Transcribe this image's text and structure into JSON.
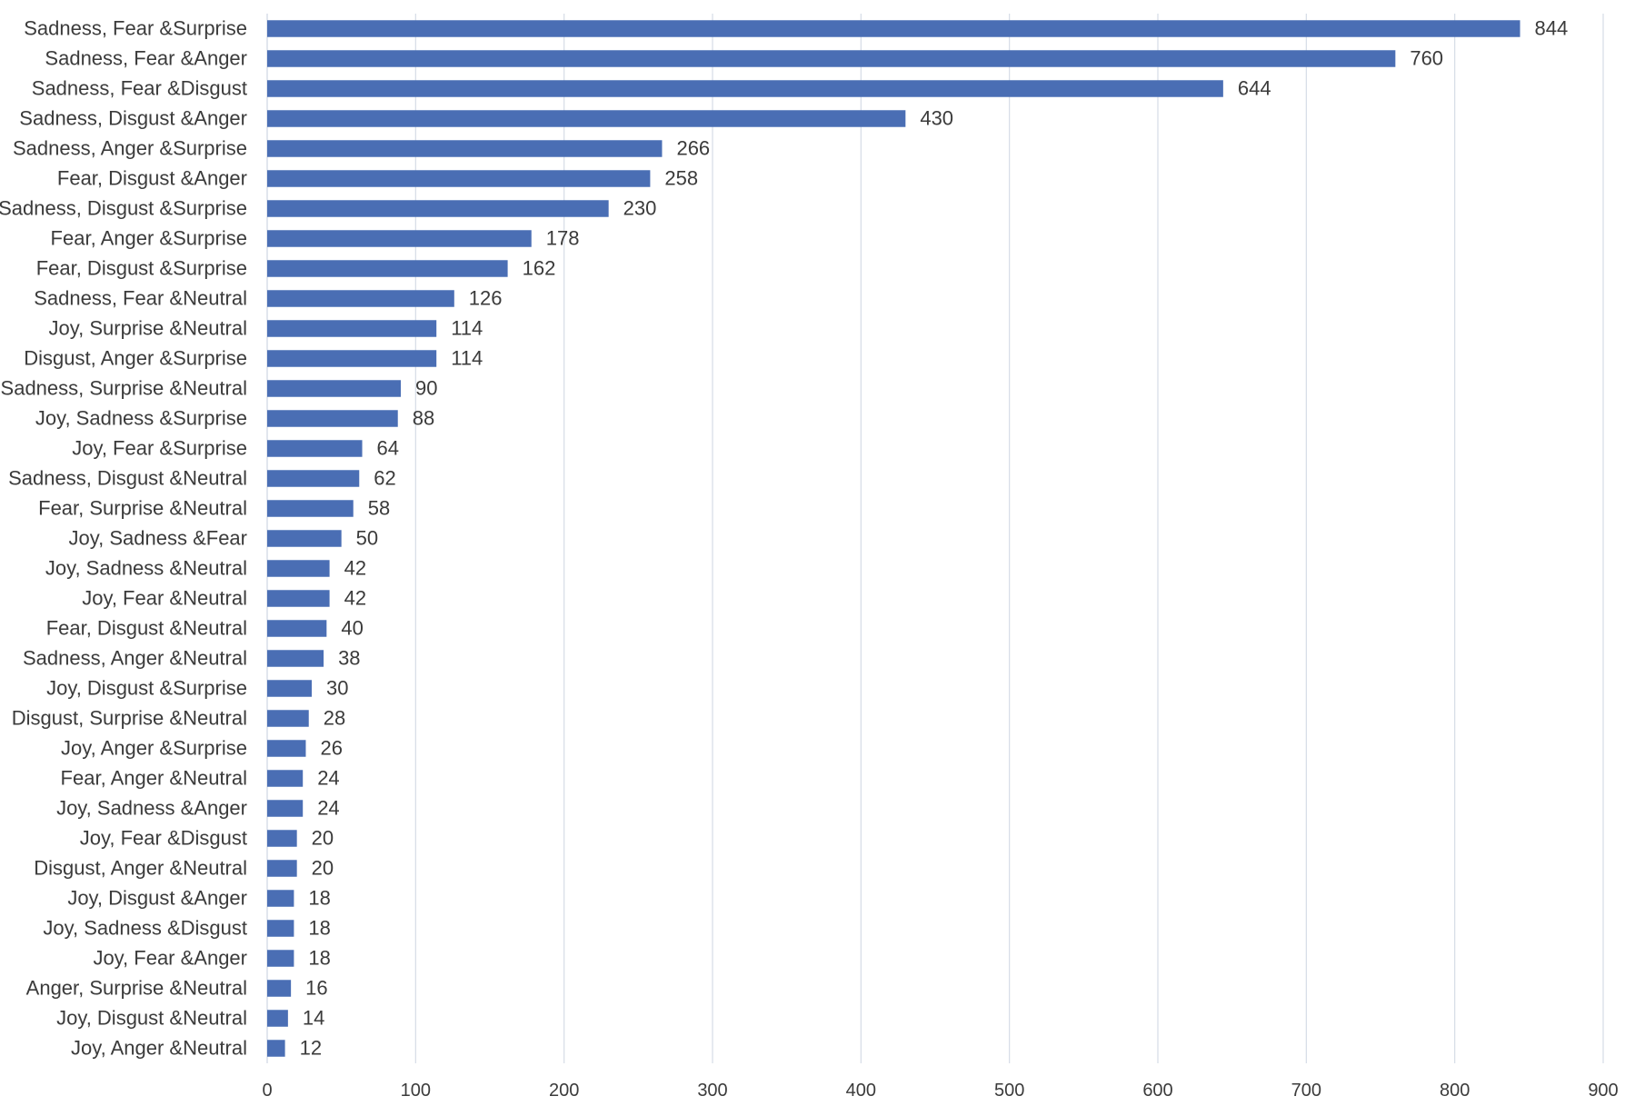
{
  "chart_data": {
    "type": "bar",
    "orientation": "horizontal",
    "title": "",
    "xlabel": "",
    "ylabel": "",
    "xlim": [
      0,
      900
    ],
    "x_ticks": [
      0,
      100,
      200,
      300,
      400,
      500,
      600,
      700,
      800,
      900
    ],
    "grid": true,
    "legend": "none",
    "bar_color": "#4a6eb4",
    "data_labels": true,
    "categories": [
      "Sadness, Fear &Surprise",
      "Sadness, Fear &Anger",
      "Sadness, Fear &Disgust",
      "Sadness, Disgust &Anger",
      "Sadness, Anger &Surprise",
      "Fear, Disgust &Anger",
      "Sadness, Disgust &Surprise",
      "Fear, Anger &Surprise",
      "Fear, Disgust &Surprise",
      "Sadness, Fear &Neutral",
      "Joy, Surprise &Neutral",
      "Disgust, Anger &Surprise",
      "Sadness, Surprise &Neutral",
      "Joy, Sadness &Surprise",
      "Joy, Fear &Surprise",
      "Sadness, Disgust &Neutral",
      "Fear, Surprise &Neutral",
      "Joy, Sadness &Fear",
      "Joy, Sadness &Neutral",
      "Joy, Fear &Neutral",
      "Fear, Disgust &Neutral",
      "Sadness, Anger &Neutral",
      "Joy, Disgust &Surprise",
      "Disgust, Surprise &Neutral",
      "Joy, Anger &Surprise",
      "Fear, Anger &Neutral",
      "Joy, Sadness &Anger",
      "Joy, Fear &Disgust",
      "Disgust, Anger &Neutral",
      "Joy, Disgust &Anger",
      "Joy, Sadness &Disgust",
      "Joy, Fear &Anger",
      "Anger, Surprise &Neutral",
      "Joy, Disgust &Neutral",
      "Joy, Anger &Neutral"
    ],
    "values": [
      844,
      760,
      644,
      430,
      266,
      258,
      230,
      178,
      162,
      126,
      114,
      114,
      90,
      88,
      64,
      62,
      58,
      50,
      42,
      42,
      40,
      38,
      30,
      28,
      26,
      24,
      24,
      20,
      20,
      18,
      18,
      18,
      16,
      14,
      12
    ]
  }
}
